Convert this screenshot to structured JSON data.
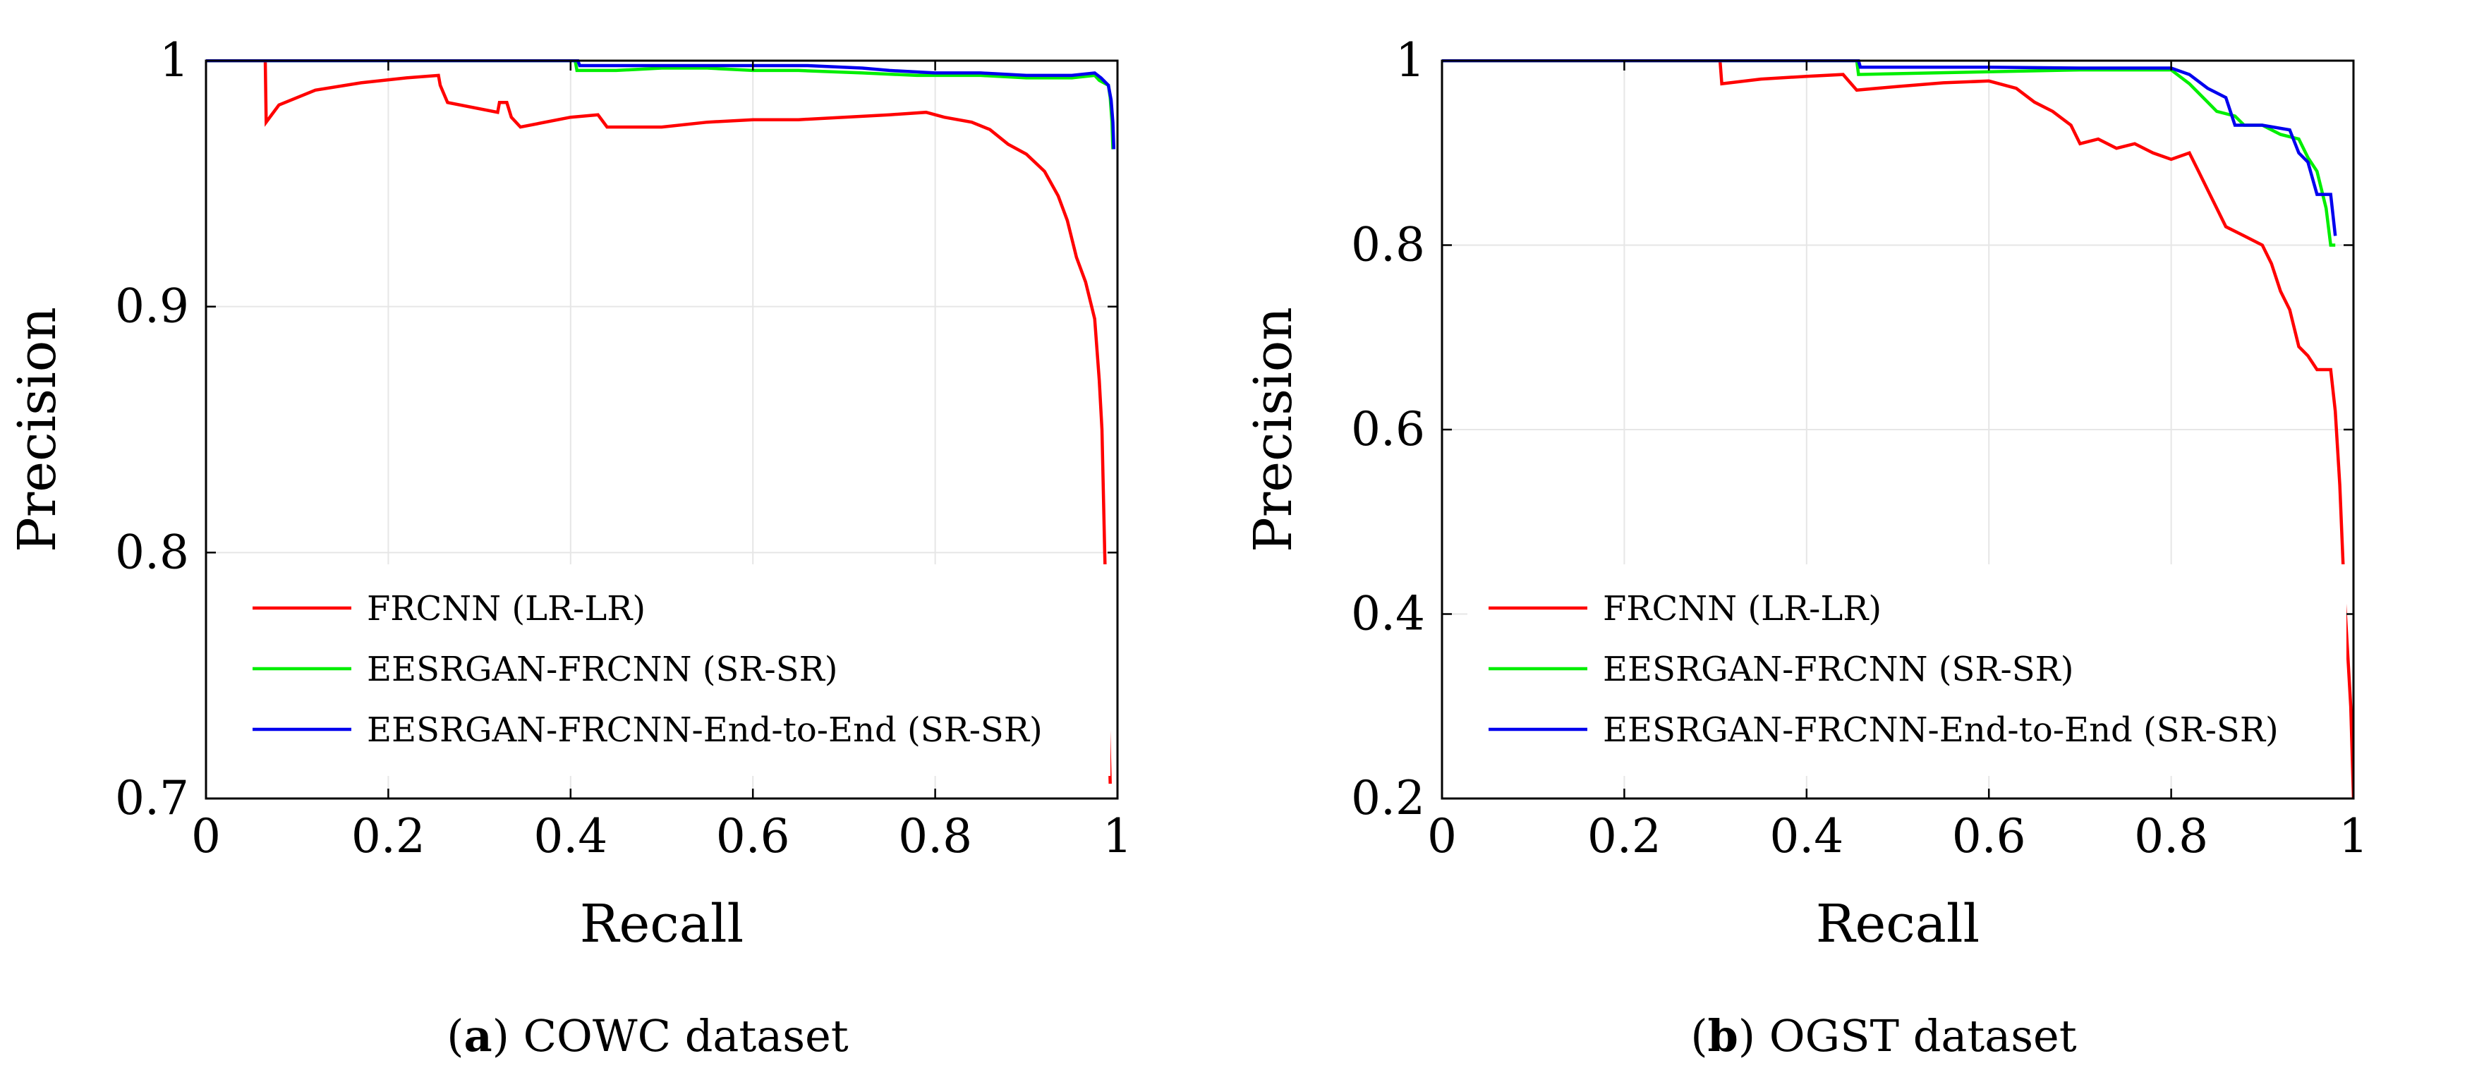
{
  "chart_data": [
    {
      "type": "line",
      "subplot_letter": "a",
      "caption": "COWC dataset",
      "xlabel": "Recall",
      "ylabel": "Precision",
      "xlim": [
        0,
        1
      ],
      "ylim": [
        0.7,
        1
      ],
      "xticks": [
        0,
        0.2,
        0.4,
        0.6,
        0.8,
        1
      ],
      "xtick_labels": [
        "0",
        "0.2",
        "0.4",
        "0.6",
        "0.8",
        "1"
      ],
      "yticks": [
        0.7,
        0.8,
        0.9,
        1
      ],
      "ytick_labels": [
        "0.7",
        "0.8",
        "0.9",
        "1"
      ],
      "grid": true,
      "legend_position": "bottom-left",
      "series": [
        {
          "name": "FRCNN (LR-LR)",
          "color": "#ff0000",
          "points": [
            [
              0,
              1
            ],
            [
              0.065,
              1
            ],
            [
              0.066,
              0.975
            ],
            [
              0.08,
              0.982
            ],
            [
              0.12,
              0.988
            ],
            [
              0.17,
              0.991
            ],
            [
              0.22,
              0.993
            ],
            [
              0.255,
              0.994
            ],
            [
              0.257,
              0.99
            ],
            [
              0.265,
              0.983
            ],
            [
              0.32,
              0.979
            ],
            [
              0.322,
              0.983
            ],
            [
              0.33,
              0.983
            ],
            [
              0.335,
              0.977
            ],
            [
              0.345,
              0.973
            ],
            [
              0.4,
              0.977
            ],
            [
              0.43,
              0.978
            ],
            [
              0.44,
              0.973
            ],
            [
              0.5,
              0.973
            ],
            [
              0.55,
              0.975
            ],
            [
              0.6,
              0.976
            ],
            [
              0.65,
              0.976
            ],
            [
              0.7,
              0.977
            ],
            [
              0.75,
              0.978
            ],
            [
              0.79,
              0.979
            ],
            [
              0.81,
              0.977
            ],
            [
              0.84,
              0.975
            ],
            [
              0.86,
              0.972
            ],
            [
              0.88,
              0.966
            ],
            [
              0.9,
              0.962
            ],
            [
              0.92,
              0.955
            ],
            [
              0.935,
              0.945
            ],
            [
              0.945,
              0.935
            ],
            [
              0.955,
              0.92
            ],
            [
              0.965,
              0.91
            ],
            [
              0.975,
              0.895
            ],
            [
              0.98,
              0.87
            ],
            [
              0.983,
              0.85
            ],
            [
              0.986,
              0.8
            ],
            [
              0.988,
              0.77
            ],
            [
              0.99,
              0.735
            ],
            [
              0.992,
              0.706
            ]
          ]
        },
        {
          "name": "EESRGAN-FRCNN (SR-SR)",
          "color": "#00ee00",
          "points": [
            [
              0,
              1
            ],
            [
              0.405,
              1
            ],
            [
              0.407,
              0.996
            ],
            [
              0.45,
              0.996
            ],
            [
              0.5,
              0.997
            ],
            [
              0.55,
              0.997
            ],
            [
              0.6,
              0.996
            ],
            [
              0.65,
              0.996
            ],
            [
              0.72,
              0.995
            ],
            [
              0.78,
              0.994
            ],
            [
              0.85,
              0.994
            ],
            [
              0.9,
              0.993
            ],
            [
              0.95,
              0.993
            ],
            [
              0.975,
              0.994
            ],
            [
              0.98,
              0.992
            ],
            [
              0.99,
              0.99
            ],
            [
              0.992,
              0.985
            ],
            [
              0.994,
              0.975
            ],
            [
              0.995,
              0.964
            ]
          ]
        },
        {
          "name": "EESRGAN-FRCNN-End-to-End (SR-SR)",
          "color": "#0000ee",
          "points": [
            [
              0,
              1
            ],
            [
              0.408,
              1
            ],
            [
              0.41,
              0.998
            ],
            [
              0.5,
              0.998
            ],
            [
              0.6,
              0.998
            ],
            [
              0.66,
              0.998
            ],
            [
              0.72,
              0.997
            ],
            [
              0.75,
              0.996
            ],
            [
              0.8,
              0.995
            ],
            [
              0.85,
              0.995
            ],
            [
              0.9,
              0.994
            ],
            [
              0.95,
              0.994
            ],
            [
              0.975,
              0.995
            ],
            [
              0.982,
              0.993
            ],
            [
              0.99,
              0.99
            ],
            [
              0.993,
              0.984
            ],
            [
              0.995,
              0.975
            ],
            [
              0.996,
              0.964
            ]
          ]
        }
      ]
    },
    {
      "type": "line",
      "subplot_letter": "b",
      "caption": "OGST dataset",
      "xlabel": "Recall",
      "ylabel": "Precision",
      "xlim": [
        0,
        1
      ],
      "ylim": [
        0.2,
        1
      ],
      "xticks": [
        0,
        0.2,
        0.4,
        0.6,
        0.8,
        1
      ],
      "xtick_labels": [
        "0",
        "0.2",
        "0.4",
        "0.6",
        "0.8",
        "1"
      ],
      "yticks": [
        0.2,
        0.4,
        0.6,
        0.8,
        1
      ],
      "ytick_labels": [
        "0.2",
        "0.4",
        "0.6",
        "0.8",
        "1"
      ],
      "grid": true,
      "legend_position": "bottom-left",
      "series": [
        {
          "name": "FRCNN (LR-LR)",
          "color": "#ff0000",
          "points": [
            [
              0,
              1
            ],
            [
              0.305,
              1
            ],
            [
              0.307,
              0.975
            ],
            [
              0.35,
              0.98
            ],
            [
              0.4,
              0.983
            ],
            [
              0.44,
              0.985
            ],
            [
              0.455,
              0.968
            ],
            [
              0.5,
              0.972
            ],
            [
              0.55,
              0.976
            ],
            [
              0.6,
              0.978
            ],
            [
              0.63,
              0.97
            ],
            [
              0.65,
              0.955
            ],
            [
              0.67,
              0.945
            ],
            [
              0.69,
              0.93
            ],
            [
              0.7,
              0.91
            ],
            [
              0.72,
              0.915
            ],
            [
              0.74,
              0.905
            ],
            [
              0.76,
              0.91
            ],
            [
              0.78,
              0.9
            ],
            [
              0.8,
              0.893
            ],
            [
              0.82,
              0.9
            ],
            [
              0.83,
              0.88
            ],
            [
              0.84,
              0.86
            ],
            [
              0.85,
              0.84
            ],
            [
              0.86,
              0.82
            ],
            [
              0.88,
              0.81
            ],
            [
              0.9,
              0.8
            ],
            [
              0.91,
              0.78
            ],
            [
              0.92,
              0.75
            ],
            [
              0.93,
              0.73
            ],
            [
              0.94,
              0.69
            ],
            [
              0.95,
              0.68
            ],
            [
              0.96,
              0.665
            ],
            [
              0.975,
              0.665
            ],
            [
              0.98,
              0.62
            ],
            [
              0.985,
              0.54
            ],
            [
              0.99,
              0.42
            ],
            [
              0.997,
              0.3
            ],
            [
              1.0,
              0.2
            ]
          ]
        },
        {
          "name": "EESRGAN-FRCNN (SR-SR)",
          "color": "#00ee00",
          "points": [
            [
              0,
              1
            ],
            [
              0.455,
              1
            ],
            [
              0.457,
              0.985
            ],
            [
              0.6,
              0.988
            ],
            [
              0.7,
              0.99
            ],
            [
              0.8,
              0.99
            ],
            [
              0.82,
              0.975
            ],
            [
              0.84,
              0.955
            ],
            [
              0.85,
              0.945
            ],
            [
              0.87,
              0.94
            ],
            [
              0.88,
              0.93
            ],
            [
              0.9,
              0.93
            ],
            [
              0.92,
              0.92
            ],
            [
              0.94,
              0.915
            ],
            [
              0.95,
              0.895
            ],
            [
              0.96,
              0.88
            ],
            [
              0.97,
              0.84
            ],
            [
              0.975,
              0.8
            ],
            [
              0.98,
              0.8
            ]
          ]
        },
        {
          "name": "EESRGAN-FRCNN-End-to-End (SR-SR)",
          "color": "#0000ee",
          "points": [
            [
              0,
              1
            ],
            [
              0.457,
              1
            ],
            [
              0.459,
              0.993
            ],
            [
              0.6,
              0.993
            ],
            [
              0.7,
              0.992
            ],
            [
              0.8,
              0.992
            ],
            [
              0.82,
              0.985
            ],
            [
              0.84,
              0.97
            ],
            [
              0.86,
              0.96
            ],
            [
              0.87,
              0.93
            ],
            [
              0.9,
              0.93
            ],
            [
              0.93,
              0.925
            ],
            [
              0.94,
              0.9
            ],
            [
              0.95,
              0.89
            ],
            [
              0.96,
              0.855
            ],
            [
              0.975,
              0.855
            ],
            [
              0.98,
              0.81
            ]
          ]
        }
      ]
    }
  ]
}
